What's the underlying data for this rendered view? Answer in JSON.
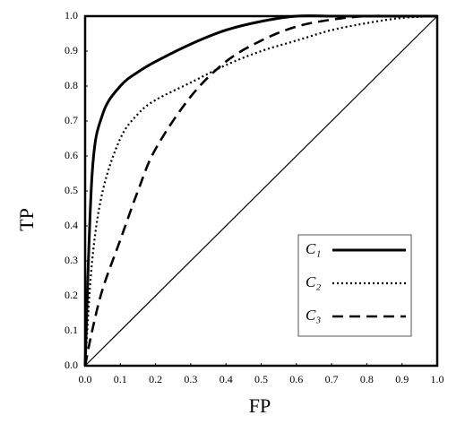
{
  "chart_data": {
    "type": "line",
    "xlabel": "FP",
    "ylabel": "TP",
    "x": [
      0,
      0.02,
      0.05,
      0.1,
      0.15,
      0.2,
      0.3,
      0.4,
      0.5,
      0.6,
      0.7,
      0.8,
      0.9,
      1.0
    ],
    "series": [
      {
        "name": "C₁",
        "color": "#000000",
        "dash": "solid",
        "values": [
          0,
          0.55,
          0.72,
          0.8,
          0.84,
          0.87,
          0.92,
          0.96,
          0.985,
          1.0,
          1.0,
          1.0,
          1.0,
          1.0
        ]
      },
      {
        "name": "C₂",
        "color": "#000000",
        "dash": "dotted",
        "values": [
          0,
          0.3,
          0.5,
          0.65,
          0.72,
          0.76,
          0.81,
          0.86,
          0.9,
          0.93,
          0.96,
          0.98,
          0.995,
          1.0
        ]
      },
      {
        "name": "C₃",
        "color": "#000000",
        "dash": "dashed",
        "values": [
          0,
          0.1,
          0.22,
          0.36,
          0.5,
          0.62,
          0.77,
          0.87,
          0.93,
          0.97,
          0.99,
          1.0,
          1.0,
          1.0
        ]
      }
    ],
    "xlim": [
      0,
      1
    ],
    "ylim": [
      0,
      1
    ],
    "xticks": [
      {
        "value": 0,
        "label": "0.0"
      },
      0.1,
      0.2,
      0.3,
      0.4,
      0.5,
      0.6,
      0.7,
      0.8,
      0.9,
      {
        "value": 1,
        "label": "1.0"
      }
    ],
    "yticks": [
      {
        "value": 0,
        "label": "0.0"
      },
      0.1,
      0.2,
      0.3,
      0.4,
      0.5,
      0.6,
      0.7,
      0.8,
      0.9,
      {
        "value": 1,
        "label": "1.0"
      }
    ],
    "grid": false,
    "diagonal": true,
    "legend": "lower right"
  }
}
